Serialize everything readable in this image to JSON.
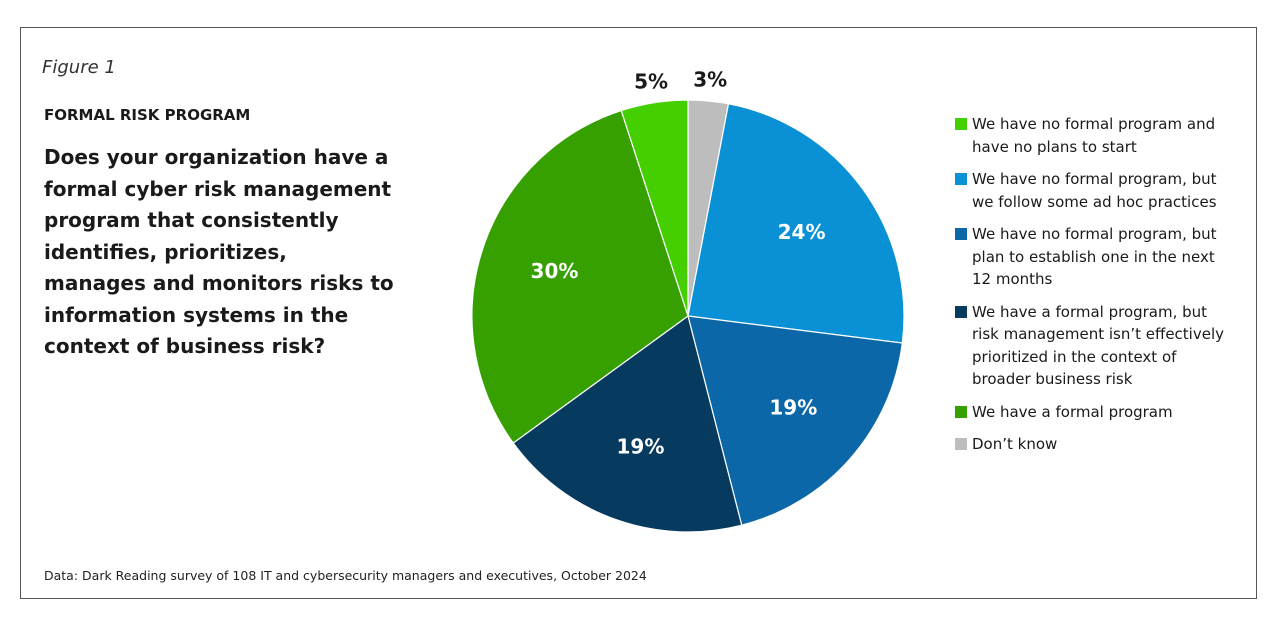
{
  "chart_data": {
    "type": "pie",
    "figure_label": "Figure 1",
    "title": "FORMAL RISK PROGRAM",
    "subtitle": "Does your organization have a formal cyber risk management program that consistently identifies, prioritizes, manages and monitors risks to information systems in the context of business risk?",
    "source": "Data: Dark Reading survey of 108 IT and cybersecurity managers and executives, October 2024",
    "categories": [
      "We have no formal program and have no plans to start",
      "We have no formal program, but we follow some ad hoc practices",
      "We have no formal program, but plan to establish one in the next 12 months",
      "We have a formal program, but risk management isn’t effectively prioritized in the context of broader business risk",
      "We have a formal program",
      "Don’t know"
    ],
    "values": [
      5,
      24,
      19,
      19,
      30,
      3
    ],
    "value_labels": [
      "5%",
      "24%",
      "19%",
      "19%",
      "30%",
      "3%"
    ],
    "colors": [
      "#45cf00",
      "#0a90d4",
      "#0b67a8",
      "#063a5f",
      "#35a000",
      "#bdbdbd"
    ],
    "legend": "right"
  }
}
